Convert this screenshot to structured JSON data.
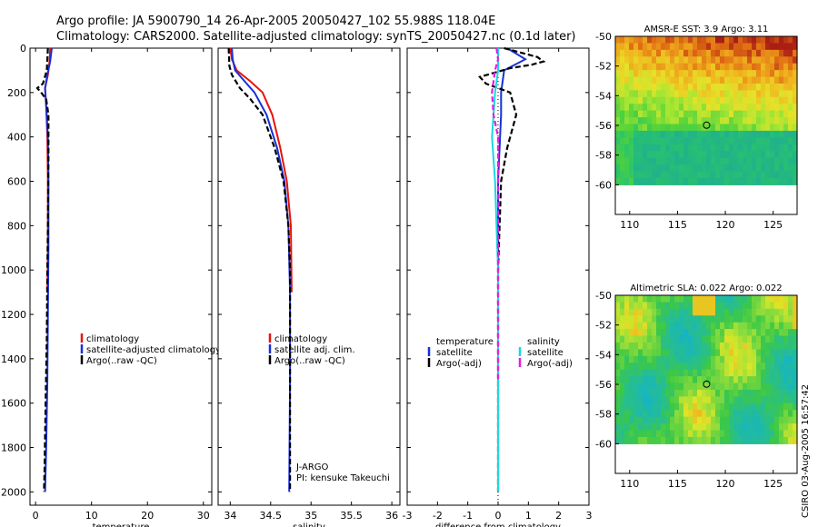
{
  "header": {
    "line1": "Argo profile: JA 5900790_14 26-Apr-2005 20050427_102 55.988S 118.04E",
    "line2": "Climatology: CARS2000. Satellite-adjusted climatology: synTS_20050427.nc (0.1d later)"
  },
  "credit": "CSIRO 03-Aug-2005 16:57:42",
  "colors": {
    "climatology": "#e8120c",
    "satellite": "#1730d8",
    "argo": "#000000",
    "cyan": "#19d8e0",
    "magenta": "#e020e0"
  },
  "chart_data": [
    {
      "type": "line",
      "id": "temp",
      "xlabel": "temperature",
      "ylabel": "",
      "xlim": [
        -1,
        31.5
      ],
      "ylim": [
        2060,
        0
      ],
      "xticks": [
        0,
        10,
        20,
        30
      ],
      "yticks": [
        0,
        200,
        400,
        600,
        800,
        1000,
        1200,
        1400,
        1600,
        1800,
        2000
      ],
      "legend": [
        "climatology",
        "satellite-adjusted climatology",
        "Argo(..raw -QC)"
      ],
      "series": [
        {
          "name": "climatology",
          "color": "#e8120c",
          "dash": false,
          "points": [
            [
              2.6,
              0
            ],
            [
              2.5,
              60
            ],
            [
              2.2,
              120
            ],
            [
              1.7,
              180
            ],
            [
              1.9,
              260
            ],
            [
              2.1,
              400
            ],
            [
              2.2,
              600
            ],
            [
              2.2,
              900
            ],
            [
              2.1,
              1100
            ]
          ]
        },
        {
          "name": "satellite-adjusted climatology",
          "color": "#1730d8",
          "dash": false,
          "points": [
            [
              2.9,
              0
            ],
            [
              2.6,
              60
            ],
            [
              2.1,
              120
            ],
            [
              1.7,
              180
            ],
            [
              1.9,
              260
            ],
            [
              2.2,
              400
            ],
            [
              2.3,
              600
            ],
            [
              2.3,
              900
            ],
            [
              2.2,
              1200
            ],
            [
              2.1,
              1500
            ],
            [
              1.9,
              1800
            ],
            [
              1.7,
              2000
            ]
          ]
        },
        {
          "name": "Argo(..raw -QC)",
          "color": "#000000",
          "dash": true,
          "points": [
            [
              2.2,
              0
            ],
            [
              2.0,
              100
            ],
            [
              1.3,
              160
            ],
            [
              0.3,
              180
            ],
            [
              1.0,
              200
            ],
            [
              1.9,
              230
            ],
            [
              2.3,
              300
            ],
            [
              2.3,
              500
            ],
            [
              2.2,
              800
            ],
            [
              2.1,
              1000
            ],
            [
              2.0,
              1300
            ],
            [
              1.8,
              1600
            ],
            [
              1.6,
              1900
            ],
            [
              1.5,
              2000
            ]
          ]
        }
      ]
    },
    {
      "type": "line",
      "id": "sal",
      "xlabel": "salinity",
      "ylabel": "",
      "xlim": [
        33.85,
        36.1
      ],
      "ylim": [
        2060,
        0
      ],
      "xticks": [
        34,
        34.5,
        35,
        35.5,
        36
      ],
      "legend": [
        "climatology",
        "satellite adj. clim.",
        "Argo(..raw -QC)"
      ],
      "annotation": [
        "J-ARGO",
        "PI: kensuke Takeuchi"
      ],
      "series": [
        {
          "name": "climatology",
          "color": "#e8120c",
          "dash": false,
          "points": [
            [
              34.0,
              0
            ],
            [
              34.02,
              50
            ],
            [
              34.08,
              100
            ],
            [
              34.25,
              150
            ],
            [
              34.4,
              200
            ],
            [
              34.52,
              300
            ],
            [
              34.62,
              450
            ],
            [
              34.7,
              600
            ],
            [
              34.75,
              800
            ],
            [
              34.76,
              1100
            ]
          ]
        },
        {
          "name": "satellite adj. clim.",
          "color": "#1730d8",
          "dash": false,
          "points": [
            [
              34.02,
              0
            ],
            [
              34.03,
              50
            ],
            [
              34.06,
              100
            ],
            [
              34.18,
              150
            ],
            [
              34.3,
              200
            ],
            [
              34.45,
              300
            ],
            [
              34.58,
              450
            ],
            [
              34.67,
              600
            ],
            [
              34.72,
              800
            ],
            [
              34.74,
              1100
            ],
            [
              34.74,
              1500
            ],
            [
              34.73,
              2000
            ]
          ]
        },
        {
          "name": "Argo(..raw -QC)",
          "color": "#000000",
          "dash": true,
          "points": [
            [
              33.98,
              0
            ],
            [
              33.99,
              80
            ],
            [
              34.02,
              120
            ],
            [
              34.12,
              180
            ],
            [
              34.25,
              230
            ],
            [
              34.4,
              300
            ],
            [
              34.55,
              450
            ],
            [
              34.66,
              600
            ],
            [
              34.72,
              800
            ],
            [
              34.74,
              1000
            ],
            [
              34.74,
              1500
            ],
            [
              34.74,
              2000
            ]
          ]
        }
      ]
    },
    {
      "type": "line",
      "id": "diff",
      "xlabel": "difference from climatology",
      "ylabel": "",
      "xlim": [
        -3,
        3
      ],
      "ylim": [
        2060,
        0
      ],
      "xticks": [
        -3,
        -2,
        -1,
        0,
        1,
        2,
        3
      ],
      "legend_left": [
        "temperature",
        "satellite",
        "Argo(-adj)"
      ],
      "legend_right": [
        "salinity",
        "satellite",
        "Argo(-adj)"
      ],
      "series": [
        {
          "name": "temperature satellite",
          "color": "#1730d8",
          "dash": false,
          "points": [
            [
              0.3,
              0
            ],
            [
              0.9,
              50
            ],
            [
              0.2,
              100
            ],
            [
              0.1,
              200
            ],
            [
              0.1,
              300
            ],
            [
              0.0,
              600
            ],
            [
              0.0,
              1000
            ],
            [
              0.0,
              1500
            ],
            [
              0.0,
              2000
            ]
          ]
        },
        {
          "name": "temperature Argo(-adj)",
          "color": "#000000",
          "dash": true,
          "points": [
            [
              0.2,
              0
            ],
            [
              1.3,
              40
            ],
            [
              1.5,
              60
            ],
            [
              1.1,
              75
            ],
            [
              0.4,
              90
            ],
            [
              -0.6,
              130
            ],
            [
              -0.4,
              160
            ],
            [
              0.4,
              200
            ],
            [
              0.6,
              300
            ],
            [
              0.3,
              450
            ],
            [
              0.1,
              600
            ],
            [
              0.0,
              1000
            ],
            [
              0.0,
              2000
            ]
          ]
        },
        {
          "name": "salinity satellite",
          "color": "#19d8e0",
          "dash": false,
          "points": [
            [
              0.0,
              0
            ],
            [
              0.0,
              100
            ],
            [
              -0.1,
              200
            ],
            [
              -0.15,
              300
            ],
            [
              -0.2,
              400
            ],
            [
              -0.1,
              600
            ],
            [
              -0.05,
              800
            ],
            [
              0.0,
              1000
            ],
            [
              0.0,
              2000
            ]
          ]
        },
        {
          "name": "salinity Argo(-adj)",
          "color": "#e020e0",
          "dash": true,
          "points": [
            [
              -0.05,
              0
            ],
            [
              0.0,
              50
            ],
            [
              -0.1,
              100
            ],
            [
              -0.2,
              200
            ],
            [
              -0.15,
              300
            ],
            [
              0.0,
              400
            ],
            [
              0.0,
              1000
            ],
            [
              0.0,
              1500
            ]
          ]
        }
      ]
    },
    {
      "type": "heatmap",
      "id": "sst",
      "title": "AMSR-E SST: 3.9 Argo: 3.11",
      "xlim": [
        108.5,
        127.5
      ],
      "ylim": [
        -62,
        -50
      ],
      "xticks": [
        110,
        115,
        120,
        125
      ],
      "yticks": [
        -50,
        -52,
        -54,
        -56,
        -58,
        -60
      ],
      "marker": [
        118.04,
        -55.988
      ]
    },
    {
      "type": "heatmap",
      "id": "sla",
      "title": "Altimetric SLA: 0.022 Argo: 0.022",
      "xlim": [
        108.5,
        127.5
      ],
      "ylim": [
        -62,
        -50
      ],
      "xticks": [
        110,
        115,
        120,
        125
      ],
      "yticks": [
        -50,
        -52,
        -54,
        -56,
        -58,
        -60
      ],
      "marker": [
        118.04,
        -55.988
      ]
    }
  ]
}
